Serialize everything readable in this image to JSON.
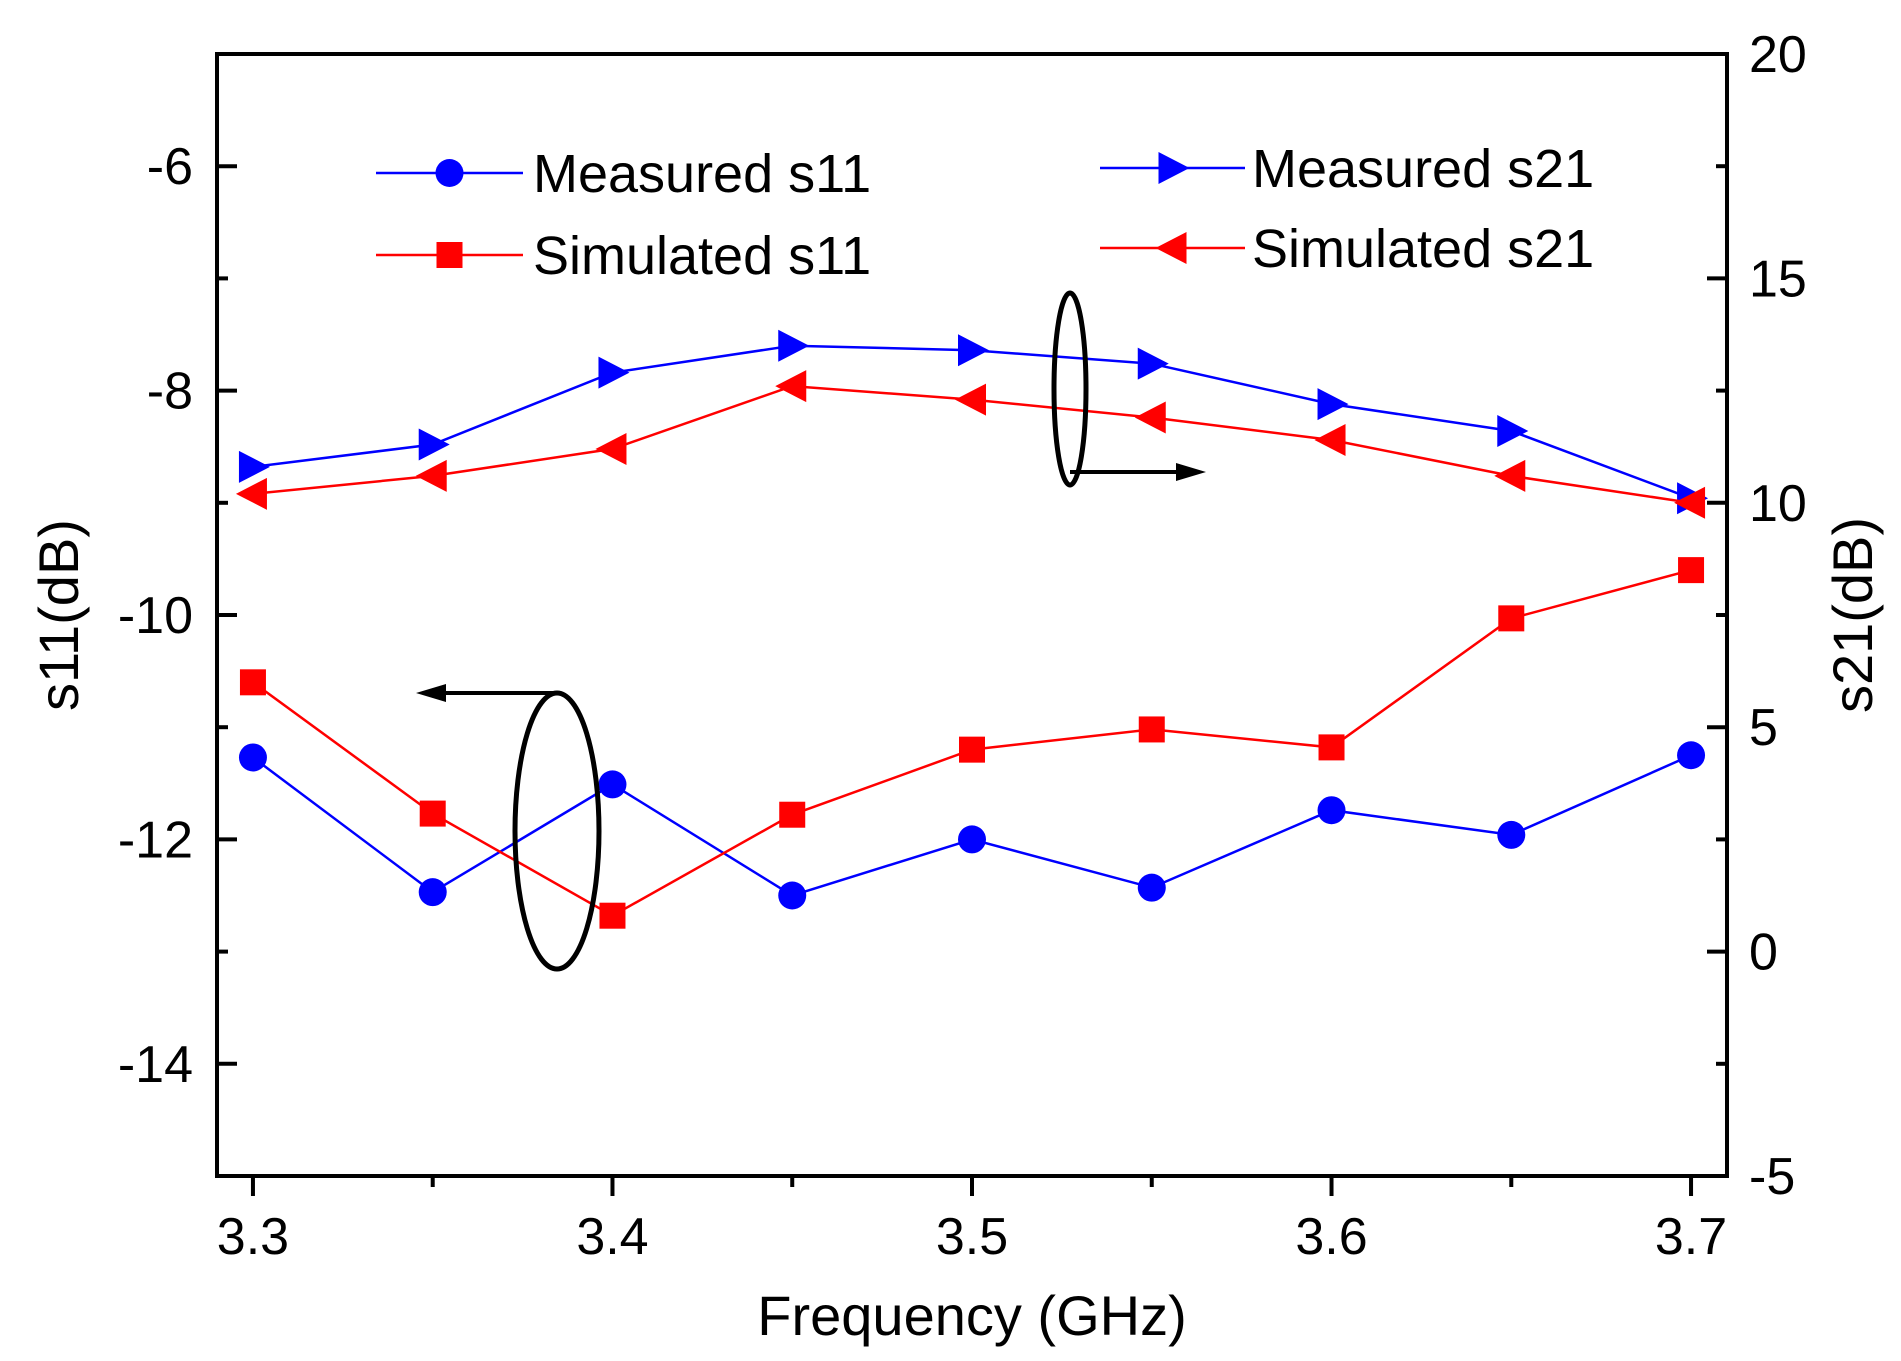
{
  "chart_data": {
    "type": "line",
    "x": [
      3.3,
      3.35,
      3.4,
      3.45,
      3.5,
      3.55,
      3.6,
      3.65,
      3.7
    ],
    "xlabel": "Frequency (GHz)",
    "xlim": [
      3.29,
      3.71
    ],
    "xticks": [
      3.3,
      3.4,
      3.5,
      3.6,
      3.7
    ],
    "xtick_labels": [
      "3.3",
      "3.4",
      "3.5",
      "3.6",
      "3.7"
    ],
    "ylabel_left": "s11(dB)",
    "ylim_left": [
      -15,
      -5
    ],
    "yticks_left": [
      -14,
      -12,
      -10,
      -8,
      -6
    ],
    "ytick_labels_left": [
      "-14",
      "-12",
      "-10",
      "-8",
      "-6"
    ],
    "ylabel_right": "s21(dB)",
    "ylim_right": [
      -5,
      20
    ],
    "yticks_right": [
      -5,
      0,
      5,
      10,
      15,
      20
    ],
    "ytick_labels_right": [
      "-5",
      "0",
      "5",
      "10",
      "15",
      "20"
    ],
    "series": [
      {
        "name": "Measured s11",
        "axis": "left",
        "color": "#0000ff",
        "marker": "circle",
        "values": [
          -11.27,
          -12.47,
          -11.51,
          -12.5,
          -12.0,
          -12.43,
          -11.74,
          -11.96,
          -11.25
        ]
      },
      {
        "name": "Simulated s11",
        "axis": "left",
        "color": "#ff0000",
        "marker": "square",
        "values": [
          -10.6,
          -11.77,
          -12.68,
          -11.78,
          -11.2,
          -11.02,
          -11.18,
          -10.03,
          -9.6
        ]
      },
      {
        "name": "Measured s21",
        "axis": "right",
        "color": "#0000ff",
        "marker": "triangle-right",
        "values": [
          10.8,
          11.3,
          12.9,
          13.5,
          13.4,
          13.1,
          12.2,
          11.6,
          10.1
        ]
      },
      {
        "name": "Simulated s21",
        "axis": "right",
        "color": "#ff0000",
        "marker": "triangle-left",
        "values": [
          10.2,
          10.6,
          11.2,
          12.6,
          12.3,
          11.9,
          11.4,
          10.6,
          10.0
        ]
      }
    ],
    "annotations": [
      {
        "type": "ellipse-arrow",
        "target_axis": "left",
        "direction": "left"
      },
      {
        "type": "ellipse-arrow",
        "target_axis": "right",
        "direction": "right"
      }
    ],
    "legend": "top"
  }
}
